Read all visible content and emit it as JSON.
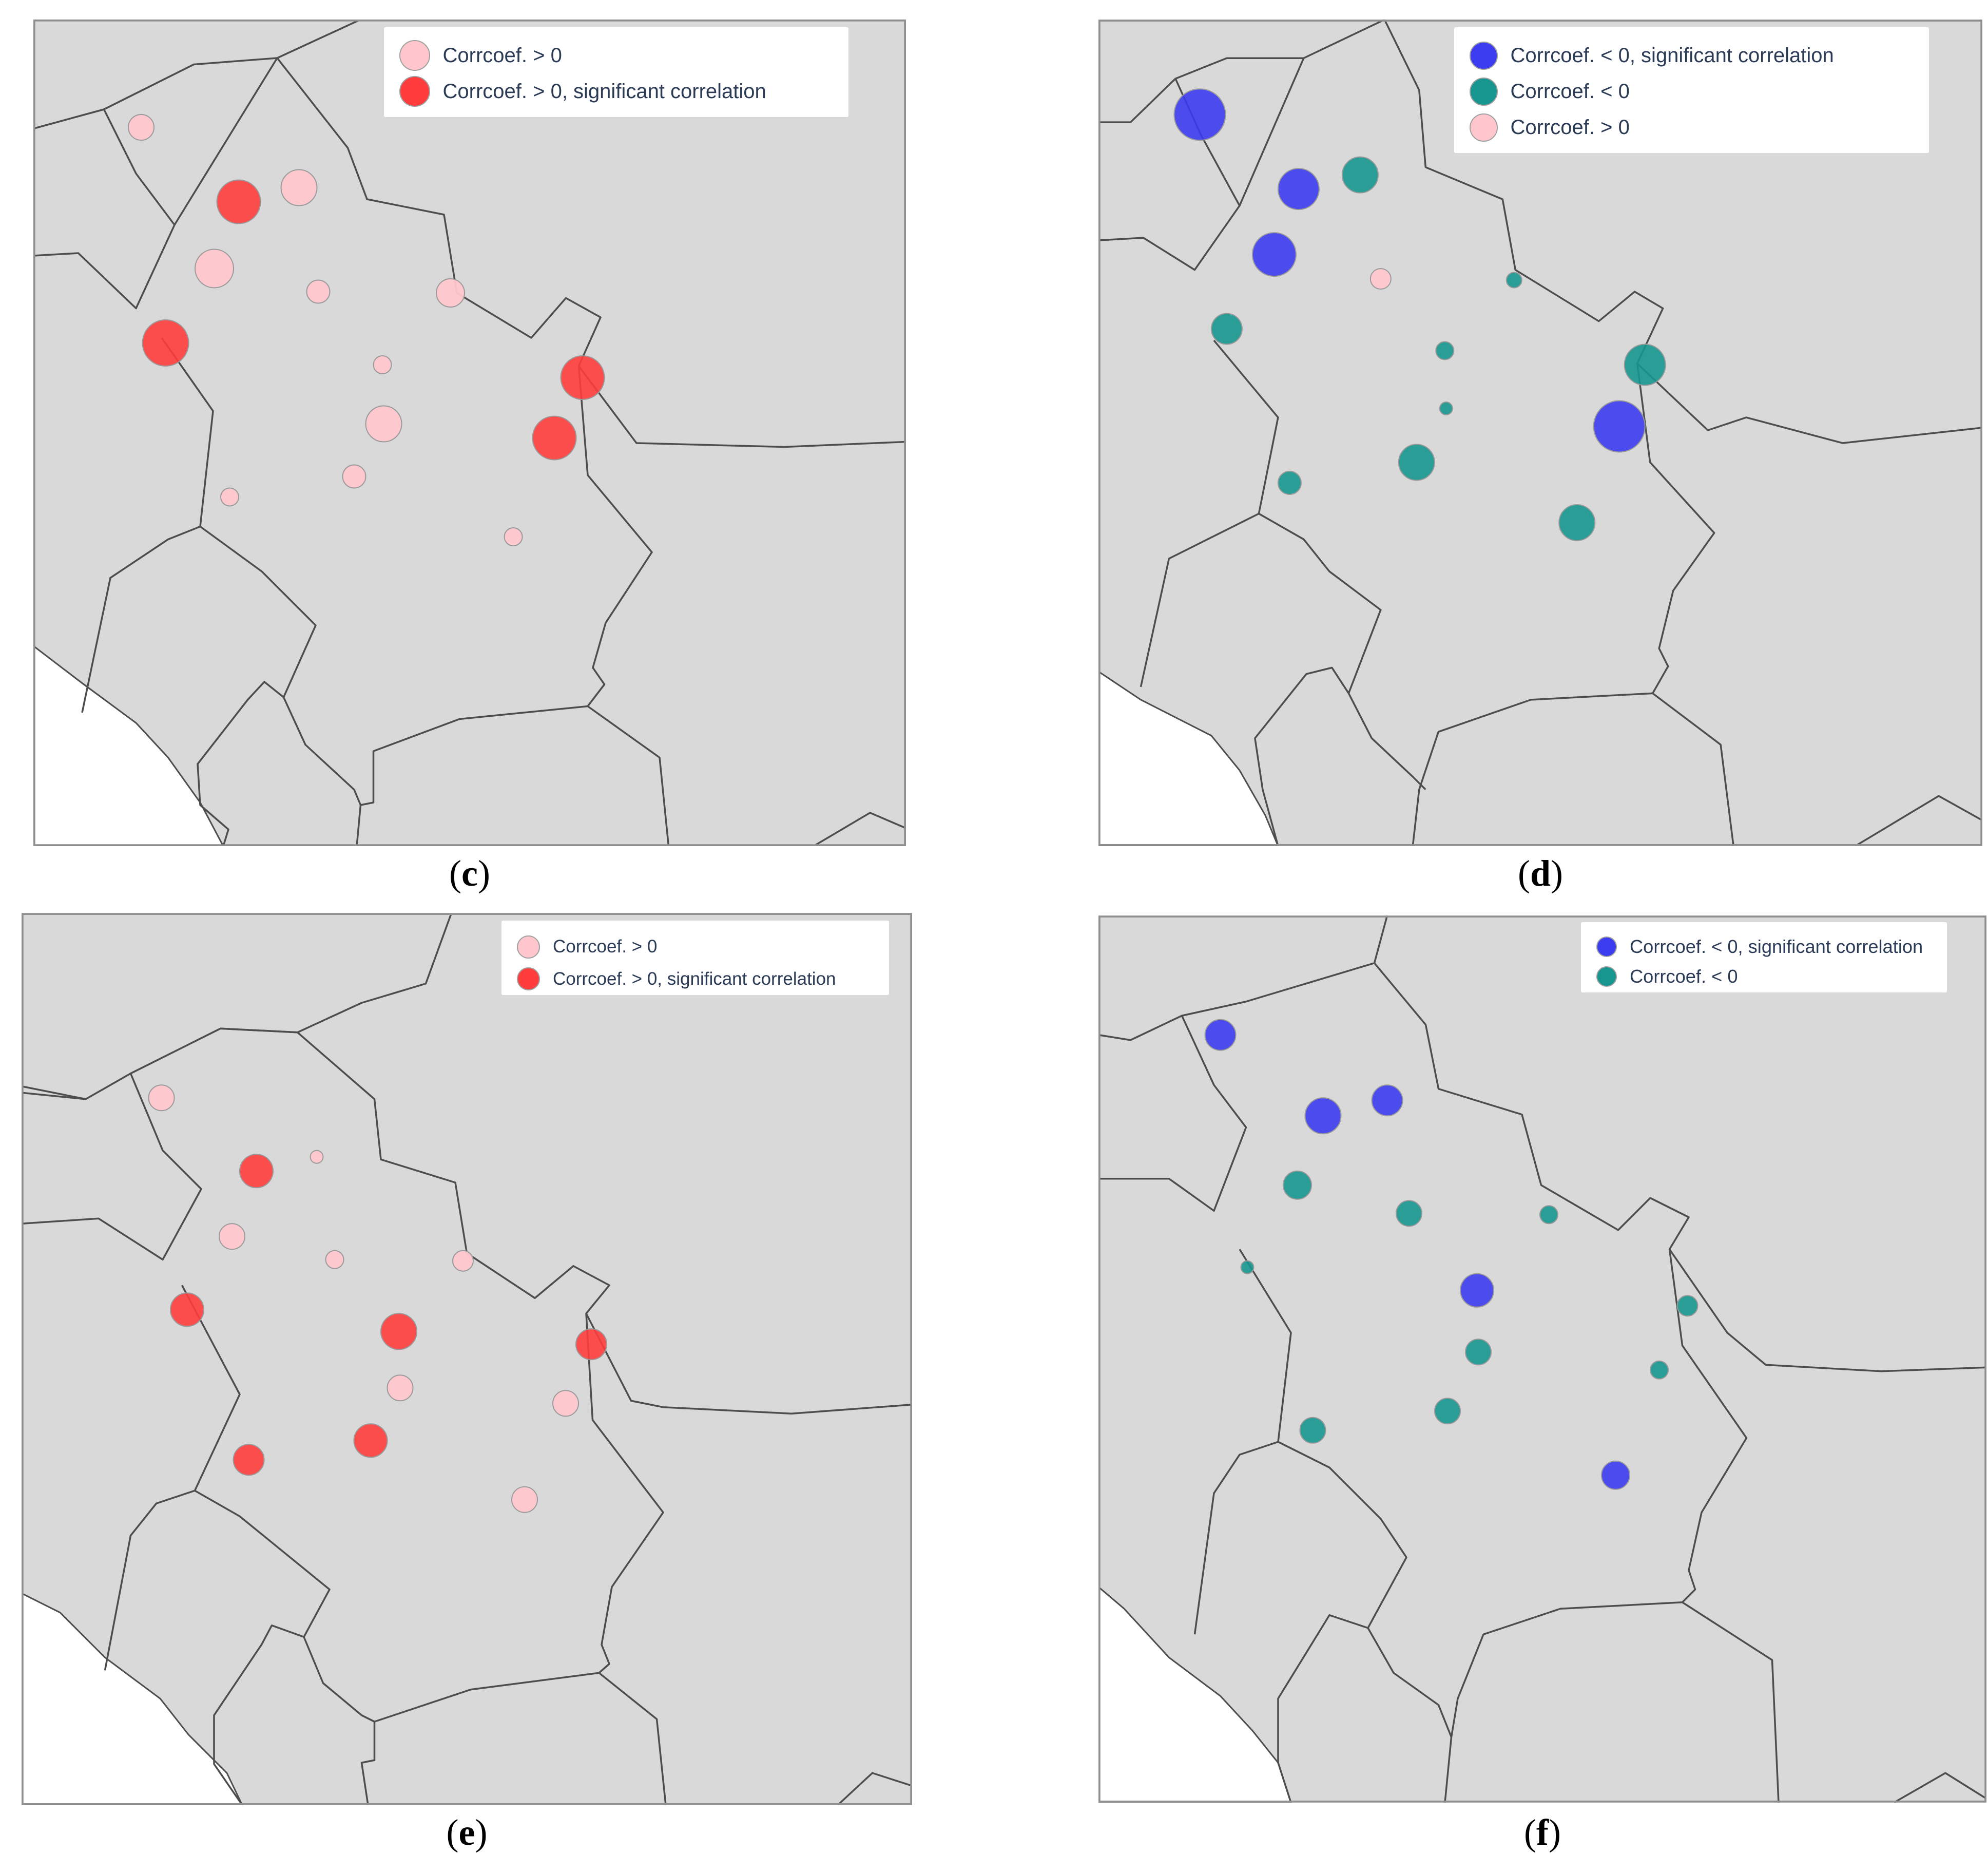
{
  "colors": {
    "land": "#d9d9d9",
    "border": "#4d4d4d",
    "frame": "#8f8f8f",
    "sea": "#ffffff",
    "pos": "#ffc7cd",
    "pos_sig": "#ff3d3d",
    "neg": "#16968f",
    "neg_sig": "#3c3cf0"
  },
  "legend_labels": {
    "pos": "Corrcoef. > 0",
    "pos_sig": "Corrcoef. > 0, significant correlation",
    "neg": "Corrcoef. < 0",
    "neg_sig": "Corrcoef. < 0, significant correlation"
  },
  "panels": [
    {
      "caption_letter": "c",
      "legend": [
        "pos",
        "pos_sig"
      ],
      "stations": [
        {
          "cls": "pos",
          "size": 2
        },
        {
          "cls": "pos_sig",
          "size": 3
        },
        {
          "cls": "pos",
          "size": 3
        },
        {
          "cls": "pos",
          "size": 3
        },
        {
          "cls": "pos",
          "size": 2
        },
        {
          "cls": "pos",
          "size": 2
        },
        {
          "cls": "pos_sig",
          "size": 3
        },
        {
          "cls": "pos",
          "size": 1
        },
        {
          "cls": "pos_sig",
          "size": 3
        },
        {
          "cls": "pos",
          "size": 3
        },
        {
          "cls": "pos_sig",
          "size": 3
        },
        {
          "cls": "pos",
          "size": 1
        },
        {
          "cls": "pos",
          "size": 2
        },
        {
          "cls": "pos",
          "size": 1
        }
      ]
    },
    {
      "caption_letter": "d",
      "legend": [
        "neg_sig",
        "neg",
        "pos"
      ],
      "stations": [
        {
          "cls": "neg_sig",
          "size": 4
        },
        {
          "cls": "neg_sig",
          "size": 3
        },
        {
          "cls": "neg",
          "size": 3
        },
        {
          "cls": "neg_sig",
          "size": 3
        },
        {
          "cls": "pos",
          "size": 1
        },
        {
          "cls": "neg",
          "size": 2
        },
        {
          "cls": "neg",
          "size": 1
        },
        {
          "cls": "neg",
          "size": 1
        },
        {
          "cls": "neg",
          "size": 3
        },
        {
          "cls": "neg",
          "size": 0
        },
        {
          "cls": "neg_sig",
          "size": 4
        },
        {
          "cls": "neg",
          "size": 2
        },
        {
          "cls": "neg",
          "size": 3
        },
        {
          "cls": "neg",
          "size": 3
        }
      ]
    },
    {
      "caption_letter": "e",
      "legend": [
        "pos",
        "pos_sig"
      ],
      "stations": [
        {
          "cls": "pos",
          "size": 2
        },
        {
          "cls": "pos_sig",
          "size": 2
        },
        {
          "cls": "pos",
          "size": 0
        },
        {
          "cls": "pos",
          "size": 2
        },
        {
          "cls": "pos",
          "size": 1
        },
        {
          "cls": "pos",
          "size": 1
        },
        {
          "cls": "pos_sig",
          "size": 2
        },
        {
          "cls": "pos_sig",
          "size": 3
        },
        {
          "cls": "pos_sig",
          "size": 2
        },
        {
          "cls": "pos",
          "size": 2
        },
        {
          "cls": "pos",
          "size": 2
        },
        {
          "cls": "pos_sig",
          "size": 2
        },
        {
          "cls": "pos_sig",
          "size": 2
        },
        {
          "cls": "pos",
          "size": 2
        }
      ]
    },
    {
      "caption_letter": "f",
      "legend": [
        "neg_sig",
        "neg"
      ],
      "stations": [
        {
          "cls": "neg_sig",
          "size": 2
        },
        {
          "cls": "neg_sig",
          "size": 2
        },
        {
          "cls": "neg_sig",
          "size": 2
        },
        {
          "cls": "neg",
          "size": 2
        },
        {
          "cls": "neg",
          "size": 2
        },
        {
          "cls": "neg",
          "size": 1
        },
        {
          "cls": "neg",
          "size": 0
        },
        {
          "cls": "neg_sig",
          "size": 2
        },
        {
          "cls": "neg",
          "size": 1
        },
        {
          "cls": "neg",
          "size": 2
        },
        {
          "cls": "neg",
          "size": 1
        },
        {
          "cls": "neg",
          "size": 2
        },
        {
          "cls": "neg",
          "size": 2
        },
        {
          "cls": "neg_sig",
          "size": 2
        }
      ]
    }
  ]
}
